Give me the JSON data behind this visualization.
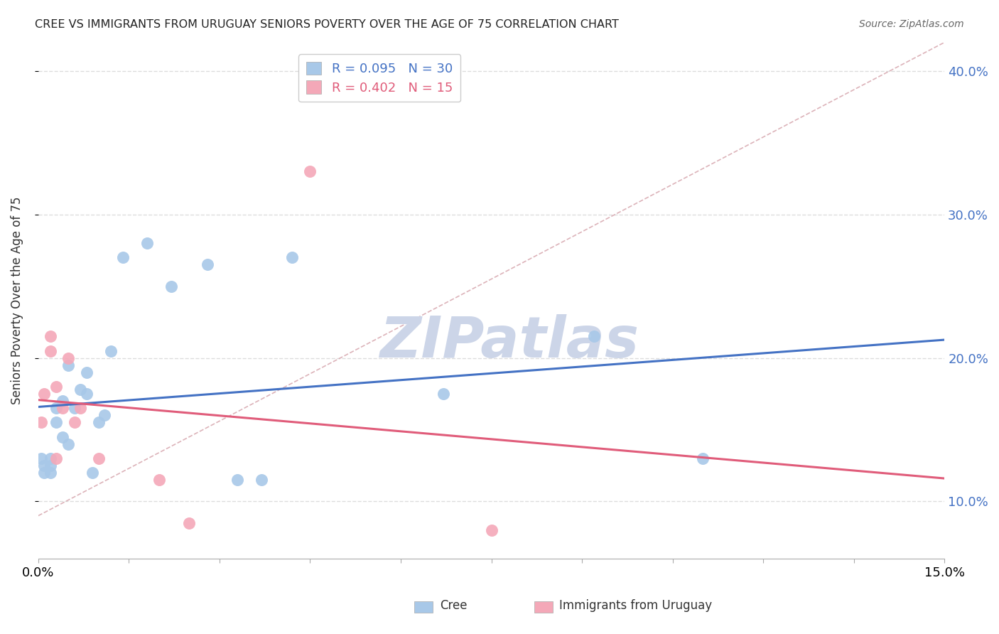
{
  "title": "CREE VS IMMIGRANTS FROM URUGUAY SENIORS POVERTY OVER THE AGE OF 75 CORRELATION CHART",
  "source": "Source: ZipAtlas.com",
  "ylabel": "Seniors Poverty Over the Age of 75",
  "xlim": [
    0.0,
    0.15
  ],
  "ylim": [
    0.06,
    0.42
  ],
  "cree_color": "#a8c8e8",
  "uruguay_color": "#f4a8b8",
  "cree_line_color": "#4472c4",
  "uruguay_line_color": "#e05c7a",
  "diagonal_color": "#d4a0a8",
  "legend_cree_R": "0.095",
  "legend_cree_N": "30",
  "legend_uruguay_R": "0.402",
  "legend_uruguay_N": "15",
  "cree_x": [
    0.0005,
    0.001,
    0.001,
    0.002,
    0.002,
    0.002,
    0.003,
    0.003,
    0.004,
    0.004,
    0.005,
    0.005,
    0.006,
    0.007,
    0.008,
    0.008,
    0.009,
    0.01,
    0.011,
    0.012,
    0.014,
    0.018,
    0.022,
    0.028,
    0.033,
    0.037,
    0.042,
    0.067,
    0.092,
    0.11
  ],
  "cree_y": [
    0.13,
    0.12,
    0.125,
    0.13,
    0.12,
    0.125,
    0.165,
    0.155,
    0.17,
    0.145,
    0.195,
    0.14,
    0.165,
    0.178,
    0.19,
    0.175,
    0.12,
    0.155,
    0.16,
    0.205,
    0.27,
    0.28,
    0.25,
    0.265,
    0.115,
    0.115,
    0.27,
    0.175,
    0.215,
    0.13
  ],
  "uruguay_x": [
    0.0005,
    0.001,
    0.002,
    0.002,
    0.003,
    0.003,
    0.004,
    0.005,
    0.006,
    0.007,
    0.01,
    0.02,
    0.025,
    0.045,
    0.075
  ],
  "uruguay_y": [
    0.155,
    0.175,
    0.205,
    0.215,
    0.13,
    0.18,
    0.165,
    0.2,
    0.155,
    0.165,
    0.13,
    0.115,
    0.085,
    0.33,
    0.08
  ],
  "background_color": "#ffffff",
  "grid_color": "#dddddd",
  "watermark": "ZIPatlas",
  "watermark_color": "#ccd5e8"
}
